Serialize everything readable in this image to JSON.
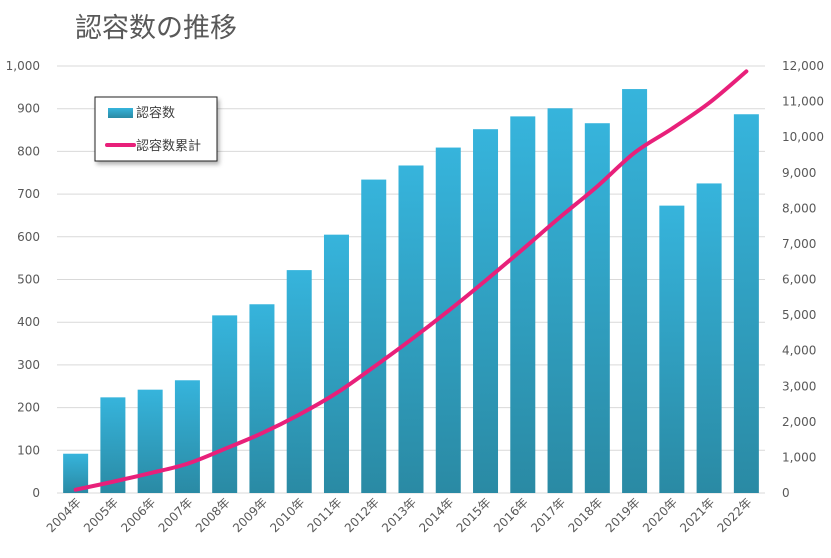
{
  "chart_data": {
    "type": "bar+line",
    "title": "認容数の推移",
    "categories": [
      "2004年",
      "2005年",
      "2006年",
      "2007年",
      "2008年",
      "2009年",
      "2010年",
      "2011年",
      "2012年",
      "2013年",
      "2014年",
      "2015年",
      "2016年",
      "2017年",
      "2018年",
      "2019年",
      "2020年",
      "2021年",
      "2022年"
    ],
    "series": [
      {
        "name": "認容数",
        "type": "bar",
        "axis": "left",
        "color": "#2f9fc4",
        "values": [
          92,
          224,
          242,
          264,
          416,
          442,
          522,
          605,
          734,
          767,
          809,
          852,
          882,
          901,
          866,
          946,
          673,
          725,
          887
        ]
      },
      {
        "name": "認容数累計",
        "type": "line",
        "axis": "right",
        "color": "#e8207a",
        "values": [
          92,
          316,
          558,
          822,
          1238,
          1680,
          2202,
          2807,
          3541,
          4308,
          5117,
          5969,
          6851,
          7752,
          8618,
          9564,
          10237,
          10962,
          11849
        ]
      }
    ],
    "left_axis": {
      "range": [
        0,
        1000
      ],
      "ticks": [
        "0",
        "100",
        "200",
        "300",
        "400",
        "500",
        "600",
        "700",
        "800",
        "900",
        "1,000"
      ]
    },
    "right_axis": {
      "range": [
        0,
        12000
      ],
      "ticks": [
        "0",
        "1,000",
        "2,000",
        "3,000",
        "4,000",
        "5,000",
        "6,000",
        "7,000",
        "8,000",
        "9,000",
        "10,000",
        "11,000",
        "12,000"
      ]
    },
    "grid": true,
    "legend": "top-left"
  }
}
